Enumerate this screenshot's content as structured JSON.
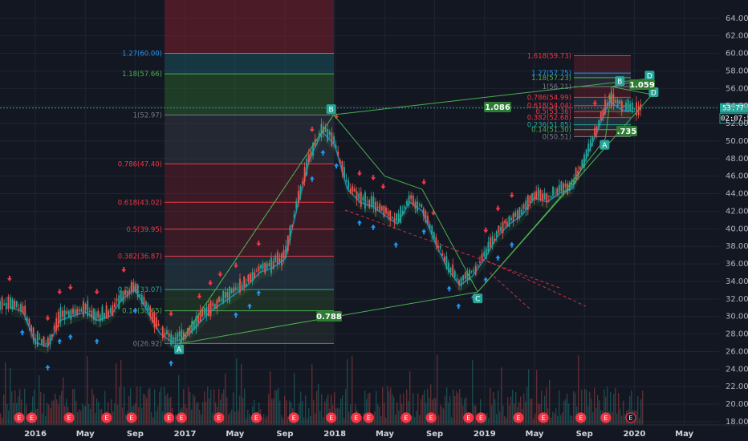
{
  "chart_data": {
    "type": "candlestick",
    "y_axis": {
      "min": 17,
      "max": 66,
      "ticks": [
        18,
        20,
        22,
        24,
        26,
        28,
        30,
        32,
        34,
        36,
        38,
        40,
        42,
        44,
        46,
        48,
        50,
        52,
        54,
        56,
        58,
        60,
        62,
        64
      ]
    },
    "x_axis": {
      "labels": [
        "2016",
        "May",
        "Sep",
        "2017",
        "May",
        "Sep",
        "2018",
        "May",
        "Sep",
        "2019",
        "May",
        "Sep",
        "2020",
        "May"
      ]
    },
    "price_path": [
      [
        "2015-11",
        31.5
      ],
      [
        "2015-12",
        31.0
      ],
      [
        "2016-01",
        27.5
      ],
      [
        "2016-02",
        27.0
      ],
      [
        "2016-03",
        30.0
      ],
      [
        "2016-04",
        30.5
      ],
      [
        "2016-05",
        31.0
      ],
      [
        "2016-06",
        30.0
      ],
      [
        "2016-07",
        30.5
      ],
      [
        "2016-08",
        32.5
      ],
      [
        "2016-09",
        33.5
      ],
      [
        "2016-10",
        31.0
      ],
      [
        "2016-11",
        28.5
      ],
      [
        "2016-12",
        27.5
      ],
      [
        "2017-01",
        28.0
      ],
      [
        "2017-02",
        29.5
      ],
      [
        "2017-03",
        31.0
      ],
      [
        "2017-04",
        32.0
      ],
      [
        "2017-05",
        33.0
      ],
      [
        "2017-06",
        34.0
      ],
      [
        "2017-07",
        35.5
      ],
      [
        "2017-08",
        36.0
      ],
      [
        "2017-09",
        37.0
      ],
      [
        "2017-10",
        43.0
      ],
      [
        "2017-11",
        48.5
      ],
      [
        "2017-12",
        51.5
      ],
      [
        "2018-01",
        50.0
      ],
      [
        "2018-02",
        45.0
      ],
      [
        "2018-03",
        43.5
      ],
      [
        "2018-04",
        43.0
      ],
      [
        "2018-05",
        42.0
      ],
      [
        "2018-06",
        41.0
      ],
      [
        "2018-07",
        43.5
      ],
      [
        "2018-08",
        42.5
      ],
      [
        "2018-09",
        39.0
      ],
      [
        "2018-10",
        36.0
      ],
      [
        "2018-11",
        34.0
      ],
      [
        "2018-12",
        35.0
      ],
      [
        "2019-01",
        37.0
      ],
      [
        "2019-02",
        39.5
      ],
      [
        "2019-03",
        41.0
      ],
      [
        "2019-04",
        42.0
      ],
      [
        "2019-05",
        44.0
      ],
      [
        "2019-06",
        43.5
      ],
      [
        "2019-07",
        44.5
      ],
      [
        "2019-08",
        45.0
      ],
      [
        "2019-09",
        48.0
      ],
      [
        "2019-10",
        51.5
      ],
      [
        "2019-11",
        55.0
      ],
      [
        "2019-12",
        54.0
      ],
      [
        "2020-01",
        53.77
      ]
    ],
    "last_price": "53.77",
    "countdown": "02:07:59",
    "fib_left": [
      {
        "label": "1.27(60.00)",
        "value": 60.0,
        "color": "#2196f3"
      },
      {
        "label": "1.18(57.66)",
        "value": 57.66,
        "color": "#4caf50"
      },
      {
        "label": "1(52.97)",
        "value": 52.97,
        "color": "#787b86"
      },
      {
        "label": "0.786(47.40)",
        "value": 47.4,
        "color": "#f23645"
      },
      {
        "label": "0.618(43.02)",
        "value": 43.02,
        "color": "#f23645"
      },
      {
        "label": "0.5(39.95)",
        "value": 39.95,
        "color": "#f23645"
      },
      {
        "label": "0.382(36.87)",
        "value": 36.87,
        "color": "#f23645"
      },
      {
        "label": "0.236(33.07)",
        "value": 33.07,
        "color": "#26a69a"
      },
      {
        "label": "0.14(30.65)",
        "value": 30.65,
        "color": "#4caf50"
      },
      {
        "label": "0(26.92)",
        "value": 26.92,
        "color": "#787b86"
      }
    ],
    "fib_right": [
      {
        "label": "1.618(59.73)",
        "value": 59.73,
        "color": "#f23645"
      },
      {
        "label": "1.27(57.75)",
        "value": 57.75,
        "color": "#2196f3"
      },
      {
        "label": "1.18(57.23)",
        "value": 57.23,
        "color": "#4caf50"
      },
      {
        "label": "1(56.21)",
        "value": 56.21,
        "color": "#787b86"
      },
      {
        "label": "0.786(54.99)",
        "value": 54.99,
        "color": "#f23645"
      },
      {
        "label": "0.618(54.04)",
        "value": 54.04,
        "color": "#f23645"
      },
      {
        "label": "0.5(53.36)",
        "value": 53.36,
        "color": "#f23645"
      },
      {
        "label": "0.382(52.68)",
        "value": 52.68,
        "color": "#f23645"
      },
      {
        "label": "0.236(51.85)",
        "value": 51.85,
        "color": "#26a69a"
      },
      {
        "label": "0.14(51.30)",
        "value": 51.3,
        "color": "#4caf50"
      },
      {
        "label": "0(50.51)",
        "value": 50.51,
        "color": "#787b86"
      }
    ],
    "points": [
      {
        "label": "A",
        "date": "2016-12",
        "value": 26.9
      },
      {
        "label": "B",
        "date": "2017-12",
        "value": 53.0
      },
      {
        "label": "C",
        "date": "2018-12",
        "value": 32.8
      },
      {
        "label": "A",
        "date": "2019-11",
        "value": 50.3
      },
      {
        "label": "B",
        "date": "2019-11",
        "value": 56.2
      },
      {
        "label": "D",
        "date": "2020-01",
        "value": 57.1
      },
      {
        "label": "D",
        "date": "2020-01",
        "value": 55.3
      }
    ],
    "ratios": [
      "1.086",
      "0.788",
      "1.059",
      ".735"
    ],
    "earnings_marker": "E"
  },
  "colors": {
    "up": "#26a69a",
    "down": "#ef5350",
    "zigzag": "#4caf50",
    "arrow_up": "#2196f3",
    "arrow_down": "#f23645"
  }
}
